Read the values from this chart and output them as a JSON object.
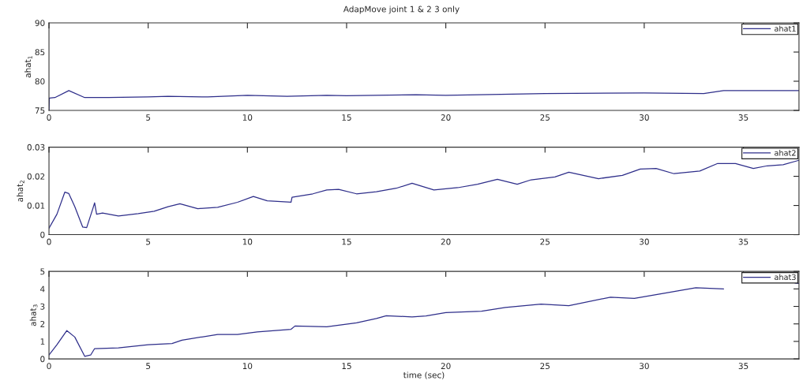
{
  "chart_data": [
    {
      "type": "line",
      "title": "AdapMove joint 1 & 2 3 only",
      "ylabel": "ahat$_{1}$",
      "xlim": [
        0,
        37.8
      ],
      "xticks": [
        0,
        5,
        10,
        15,
        20,
        25,
        30,
        35
      ],
      "ylim": [
        75,
        90
      ],
      "yticks": [
        75,
        80,
        85,
        90
      ],
      "grid": false,
      "legend": "top right",
      "line_style": "solid",
      "series": [
        {
          "name": "ahat1",
          "color": "#2e2e8a",
          "x": [
            0,
            0.02,
            0.3,
            1.0,
            1.8,
            3,
            5,
            6,
            8,
            10,
            12,
            14,
            15,
            18.5,
            20,
            25,
            30,
            33,
            34,
            37.8
          ],
          "values": [
            75,
            77.1,
            77.2,
            78.4,
            77.2,
            77.2,
            77.3,
            77.4,
            77.3,
            77.6,
            77.4,
            77.6,
            77.5,
            77.7,
            77.6,
            77.9,
            78.0,
            77.9,
            78.4,
            78.4
          ]
        }
      ]
    },
    {
      "type": "line",
      "ylabel": "ahat$_{2}$",
      "xlim": [
        0,
        37.8
      ],
      "xticks": [
        0,
        5,
        10,
        15,
        20,
        25,
        30,
        35
      ],
      "ylim": [
        0,
        0.03
      ],
      "yticks": [
        0,
        0.01,
        0.02,
        0.03
      ],
      "grid": false,
      "legend": "top right",
      "line_style": "solid",
      "series": [
        {
          "name": "ahat2",
          "color": "#2e2e8a",
          "x": [
            0,
            0.4,
            0.8,
            1.0,
            1.3,
            1.7,
            1.9,
            2.2,
            2.3,
            2.4,
            2.7,
            3.5,
            4.5,
            5.3,
            6.0,
            6.6,
            7.5,
            8.5,
            9.5,
            10.3,
            11.0,
            12.2,
            12.25,
            13.3,
            14.0,
            14.6,
            15.5,
            16.5,
            17.5,
            18.3,
            19.4,
            20.6,
            21.6,
            22.6,
            23.6,
            24.3,
            25.5,
            26.2,
            27.7,
            28.9,
            29.8,
            30.6,
            31.5,
            32.8,
            33.7,
            34.6,
            35.5,
            36.2,
            37.0,
            37.8
          ],
          "values": [
            0.0022,
            0.007,
            0.0146,
            0.0141,
            0.0096,
            0.0026,
            0.0024,
            0.0087,
            0.0109,
            0.007,
            0.0074,
            0.0064,
            0.0072,
            0.008,
            0.0096,
            0.0106,
            0.0089,
            0.0094,
            0.0111,
            0.0131,
            0.0116,
            0.0111,
            0.0128,
            0.014,
            0.0153,
            0.0155,
            0.014,
            0.0147,
            0.0159,
            0.0176,
            0.0153,
            0.0161,
            0.0173,
            0.019,
            0.0173,
            0.0188,
            0.0198,
            0.0214,
            0.0192,
            0.0203,
            0.0225,
            0.0227,
            0.0209,
            0.0218,
            0.0244,
            0.0244,
            0.0227,
            0.0236,
            0.024,
            0.0255
          ]
        }
      ]
    },
    {
      "type": "line",
      "xlabel": "time (sec)",
      "ylabel": "ahat$_{3}$",
      "xlim": [
        0,
        37.8
      ],
      "xticks": [
        0,
        5,
        10,
        15,
        20,
        25,
        30,
        35
      ],
      "ylim": [
        0,
        5
      ],
      "yticks": [
        0,
        1,
        2,
        3,
        4,
        5
      ],
      "grid": false,
      "legend": "top right",
      "line_style": "solid",
      "series": [
        {
          "name": "ahat3",
          "color": "#2e2e8a",
          "x": [
            0,
            0.4,
            0.9,
            1.3,
            1.8,
            2.1,
            2.3,
            3.5,
            5,
            6.2,
            6.7,
            8.5,
            9.5,
            10.5,
            12.2,
            12.4,
            14,
            15.5,
            16.5,
            17,
            18.3,
            19,
            20,
            21.8,
            23,
            24.8,
            26.2,
            28.3,
            29.5,
            31,
            32.6,
            34,
            35,
            35.5,
            37.6,
            37.8
          ],
          "values": [
            0.22,
            0.81,
            1.62,
            1.25,
            0.15,
            0.22,
            0.59,
            0.63,
            0.81,
            0.88,
            1.07,
            1.4,
            1.4,
            1.54,
            1.69,
            1.88,
            1.84,
            2.06,
            2.31,
            2.47,
            2.4,
            2.46,
            2.65,
            2.72,
            2.94,
            3.13,
            3.04,
            3.53,
            3.46,
            3.75,
            4.07,
            4.0,
            null,
            null,
            4.34,
            4.31
          ]
        }
      ]
    }
  ]
}
